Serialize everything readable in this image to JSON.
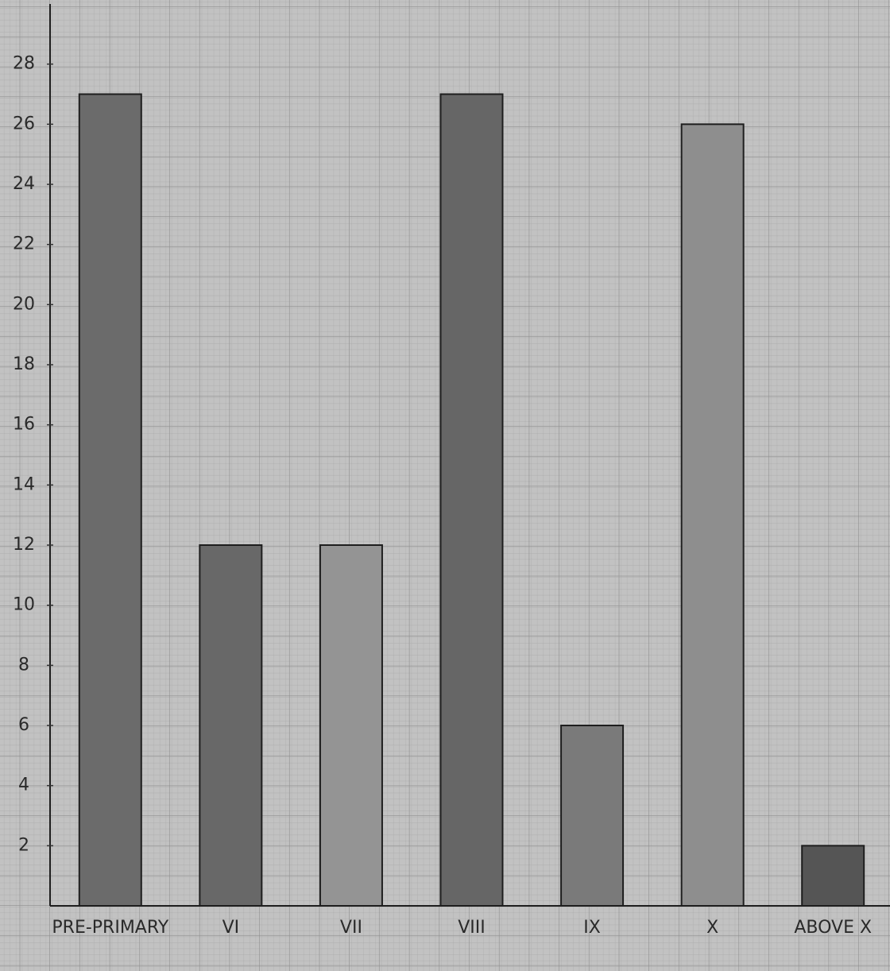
{
  "chart_data": {
    "type": "bar",
    "categories": [
      "PRE-PRIMARY",
      "VI",
      "VII",
      "VIII",
      "IX",
      "X",
      "ABOVE X"
    ],
    "values": [
      27,
      12,
      12,
      27,
      6,
      26,
      2
    ],
    "colors": [
      "#6b6b6b",
      "#686868",
      "#949494",
      "#666666",
      "#7a7a7a",
      "#8e8e8e",
      "#555555"
    ],
    "ylim": [
      0,
      30
    ],
    "yticks": [
      2,
      4,
      6,
      8,
      10,
      12,
      14,
      16,
      18,
      20,
      22,
      24,
      26,
      28
    ]
  }
}
